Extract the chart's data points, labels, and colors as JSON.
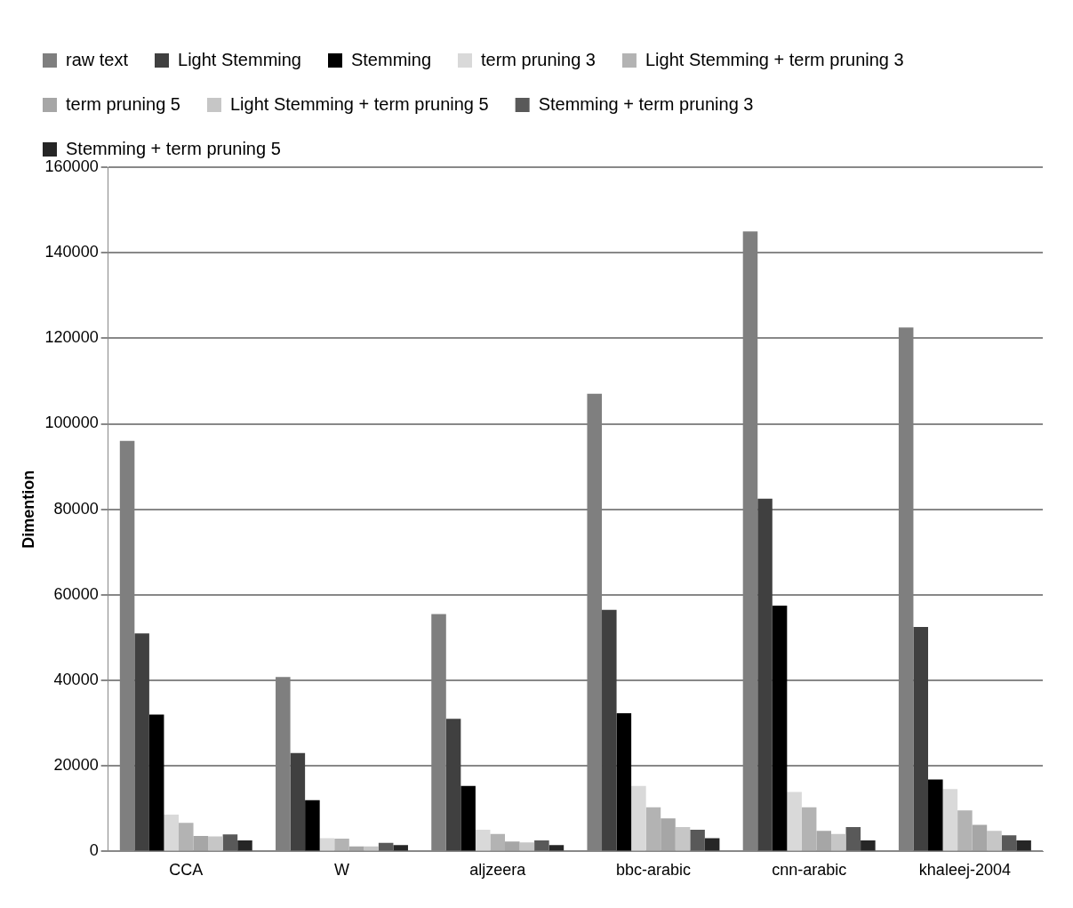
{
  "chart_data": {
    "type": "bar",
    "ylabel": "Dimention",
    "categories": [
      "CCA",
      "W",
      "aljzeera",
      "bbc-arabic",
      "cnn-arabic",
      "khaleej-2004"
    ],
    "series": [
      {
        "name": "raw text",
        "color": "#7f7f7f",
        "values": [
          96000,
          40800,
          55500,
          107000,
          145000,
          122500
        ]
      },
      {
        "name": "Light Stemming",
        "color": "#404040",
        "values": [
          51000,
          23000,
          31000,
          56500,
          82500,
          52500
        ]
      },
      {
        "name": "Stemming",
        "color": "#000000",
        "values": [
          32000,
          12000,
          15300,
          32300,
          57500,
          16800
        ]
      },
      {
        "name": "term pruning 3",
        "color": "#d9d9d9",
        "values": [
          8600,
          3100,
          5100,
          15300,
          13900,
          14600
        ]
      },
      {
        "name": "Light Stemming + term pruning 3",
        "color": "#b3b3b3",
        "values": [
          6700,
          3000,
          4100,
          10300,
          10300,
          9600
        ]
      },
      {
        "name": "term pruning 5",
        "color": "#a6a6a6",
        "values": [
          3600,
          1200,
          2300,
          7700,
          4800,
          6200
        ]
      },
      {
        "name": "Light Stemming + term pruning 5",
        "color": "#c6c6c6",
        "values": [
          3500,
          1200,
          2100,
          5700,
          4100,
          4800
        ]
      },
      {
        "name": "Stemming + term pruning 3",
        "color": "#595959",
        "values": [
          4000,
          2000,
          2600,
          5100,
          5700,
          3800
        ]
      },
      {
        "name": "Stemming + term pruning 5",
        "color": "#262626",
        "values": [
          2600,
          1500,
          1500,
          3100,
          2600,
          2600
        ]
      }
    ],
    "ylim": [
      0,
      160000
    ],
    "yticks": [
      0,
      20000,
      40000,
      60000,
      80000,
      100000,
      120000,
      140000,
      160000
    ],
    "grid": "y",
    "legend": "top"
  }
}
